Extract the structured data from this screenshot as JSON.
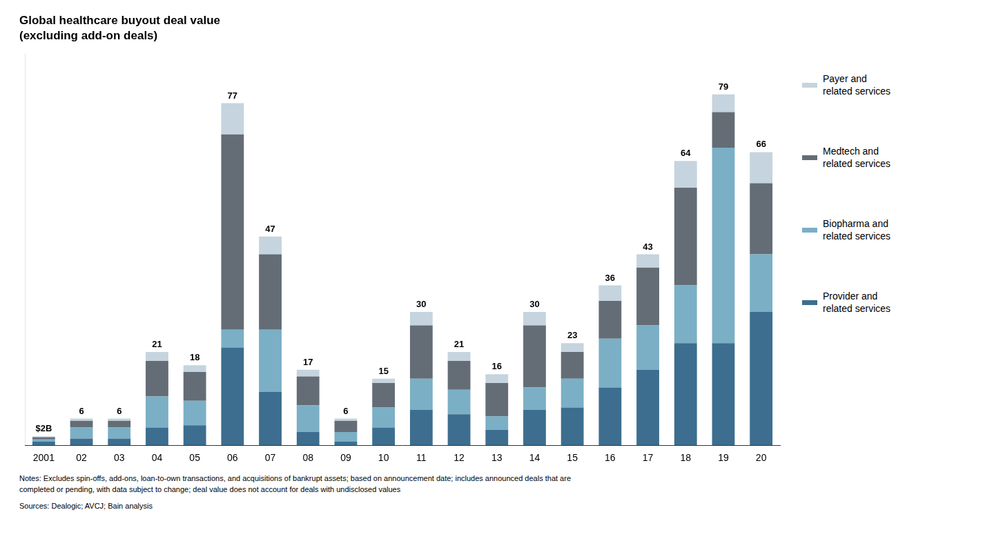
{
  "chart_data": {
    "type": "bar",
    "title": "Global healthcare buyout deal value",
    "subtitle": "(excluding add-on deals)",
    "categories": [
      "2001",
      "02",
      "03",
      "04",
      "05",
      "06",
      "07",
      "08",
      "09",
      "10",
      "11",
      "12",
      "13",
      "14",
      "15",
      "16",
      "17",
      "18",
      "19",
      "20"
    ],
    "series": [
      {
        "name": "Provider and\nrelated services",
        "color": "#3d6e8f",
        "values": [
          0.8,
          1.5,
          1.5,
          4.0,
          4.5,
          22.0,
          12.0,
          3.0,
          0.8,
          4.0,
          8.0,
          7.0,
          3.5,
          8.0,
          8.5,
          13.0,
          17.0,
          23.0,
          23.0,
          30.0
        ]
      },
      {
        "name": "Biopharma and\nrelated services",
        "color": "#7aafc5",
        "values": [
          0.5,
          2.5,
          2.5,
          7.0,
          5.5,
          4.0,
          14.0,
          6.0,
          2.2,
          4.5,
          7.0,
          5.5,
          3.0,
          5.0,
          6.5,
          11.0,
          10.0,
          13.0,
          44.0,
          13.0
        ]
      },
      {
        "name": "Medtech and\nrelated services",
        "color": "#646d76",
        "values": [
          0.5,
          1.5,
          1.5,
          8.0,
          6.5,
          44.0,
          17.0,
          6.5,
          2.5,
          5.5,
          12.0,
          6.5,
          7.5,
          14.0,
          6.0,
          8.5,
          13.0,
          22.0,
          8.0,
          16.0
        ]
      },
      {
        "name": "Payer and\nrelated services",
        "color": "#c5d4de",
        "values": [
          0.2,
          0.5,
          0.5,
          2.0,
          1.5,
          7.0,
          4.0,
          1.5,
          0.5,
          1.0,
          3.0,
          2.0,
          2.0,
          3.0,
          2.0,
          3.5,
          3.0,
          6.0,
          4.0,
          7.0
        ]
      }
    ],
    "totals": [
      2,
      6,
      6,
      21,
      18,
      77,
      47,
      17,
      6,
      15,
      30,
      21,
      16,
      30,
      23,
      36,
      43,
      64,
      79,
      66
    ],
    "total_labels": [
      "$2B",
      "6",
      "6",
      "21",
      "18",
      "77",
      "47",
      "17",
      "6",
      "15",
      "30",
      "21",
      "16",
      "30",
      "23",
      "36",
      "43",
      "64",
      "79",
      "66"
    ],
    "ylim": [
      0,
      88
    ],
    "stacked": true,
    "grid": false,
    "tick_labels": "x",
    "legend": "right",
    "notes": [
      "Notes: Excludes spin-offs, add-ons, loan-to-own transactions, and acquisitions of bankrupt assets; based on announcement date; includes announced deals that are",
      "completed or pending, with data subject to change; deal value does not account for deals with undisclosed values"
    ],
    "source": "Sources: Dealogic; AVCJ; Bain analysis"
  }
}
